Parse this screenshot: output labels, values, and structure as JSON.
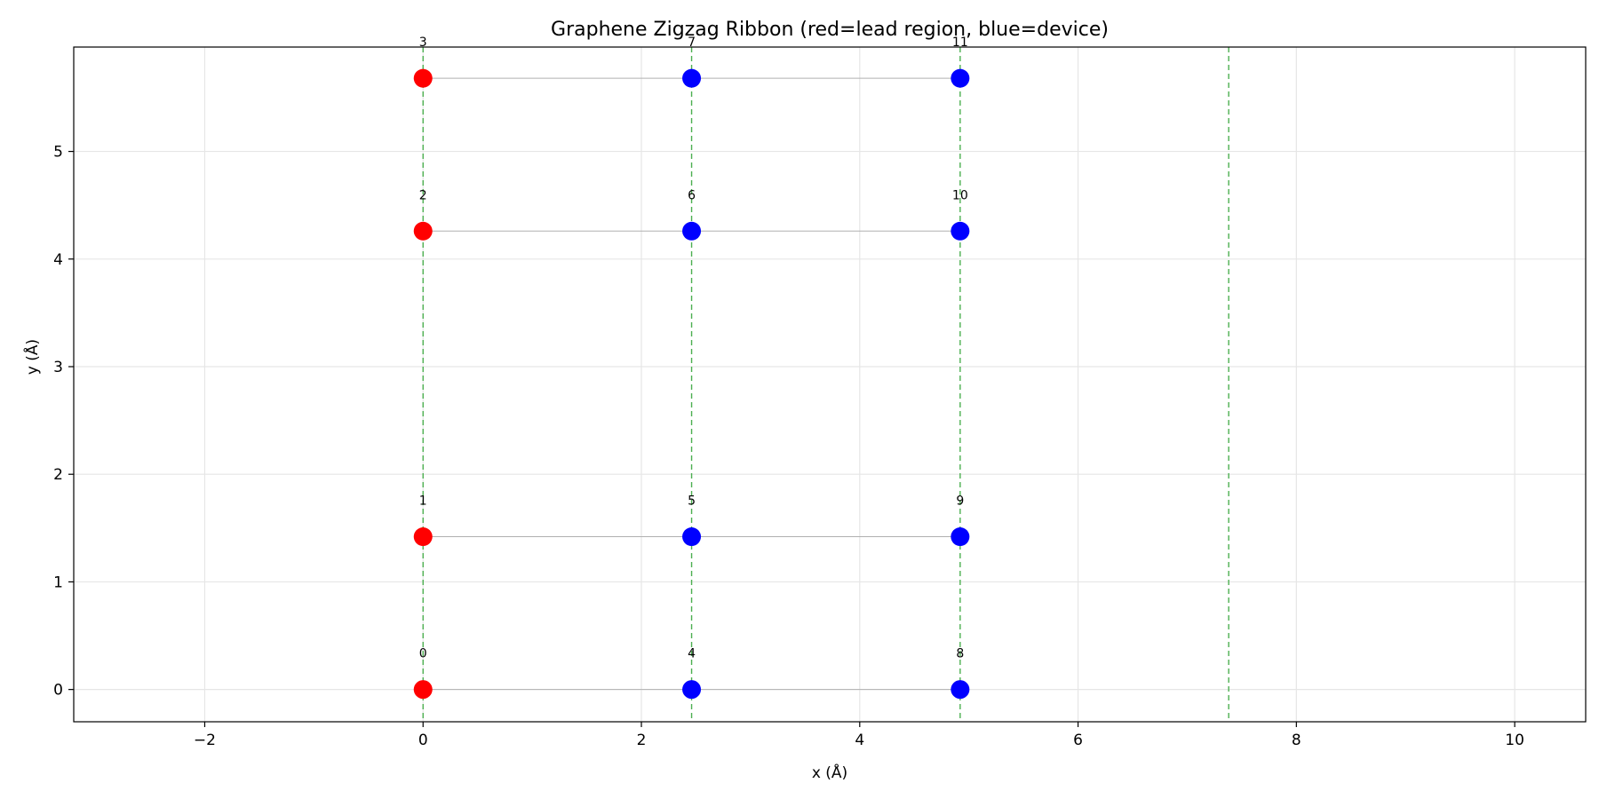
{
  "chart_data": {
    "type": "scatter",
    "title": "Graphene Zigzag Ribbon (red=lead region, blue=device)",
    "xlabel": "x (Å)",
    "ylabel": "y (Å)",
    "xlim": [
      -3.2,
      10.65
    ],
    "ylim": [
      -0.3,
      5.97
    ],
    "x_ticks": [
      -2,
      0,
      2,
      4,
      6,
      8,
      10
    ],
    "x_tick_labels": [
      "−2",
      "0",
      "2",
      "4",
      "6",
      "8",
      "10"
    ],
    "y_ticks": [
      0,
      1,
      2,
      3,
      4,
      5
    ],
    "y_tick_labels": [
      "0",
      "1",
      "2",
      "3",
      "4",
      "5"
    ],
    "grid": true,
    "colors": {
      "lead": "#ff0000",
      "device": "#0000ff",
      "boundary": "#4caf50",
      "bond": "#b0b0b0",
      "grid": "#e6e6e6"
    },
    "boundaries_x": [
      0,
      2.46,
      4.92,
      7.38
    ],
    "points": [
      {
        "id": 0,
        "label": "0",
        "x": 0,
        "y": 0,
        "region": "lead"
      },
      {
        "id": 1,
        "label": "1",
        "x": 0,
        "y": 1.42,
        "region": "lead"
      },
      {
        "id": 2,
        "label": "2",
        "x": 0,
        "y": 4.26,
        "region": "lead"
      },
      {
        "id": 3,
        "label": "3",
        "x": 0,
        "y": 5.68,
        "region": "lead"
      },
      {
        "id": 4,
        "label": "4",
        "x": 2.46,
        "y": 0,
        "region": "device"
      },
      {
        "id": 5,
        "label": "5",
        "x": 2.46,
        "y": 1.42,
        "region": "device"
      },
      {
        "id": 6,
        "label": "6",
        "x": 2.46,
        "y": 4.26,
        "region": "device"
      },
      {
        "id": 7,
        "label": "7",
        "x": 2.46,
        "y": 5.68,
        "region": "device"
      },
      {
        "id": 8,
        "label": "8",
        "x": 4.92,
        "y": 0,
        "region": "device"
      },
      {
        "id": 9,
        "label": "9",
        "x": 4.92,
        "y": 1.42,
        "region": "device"
      },
      {
        "id": 10,
        "label": "10",
        "x": 4.92,
        "y": 4.26,
        "region": "device"
      },
      {
        "id": 11,
        "label": "11",
        "x": 4.92,
        "y": 5.68,
        "region": "device"
      }
    ],
    "bonds": [
      [
        0,
        4
      ],
      [
        4,
        8
      ],
      [
        1,
        5
      ],
      [
        5,
        9
      ],
      [
        2,
        6
      ],
      [
        6,
        10
      ],
      [
        3,
        7
      ],
      [
        7,
        11
      ]
    ]
  }
}
